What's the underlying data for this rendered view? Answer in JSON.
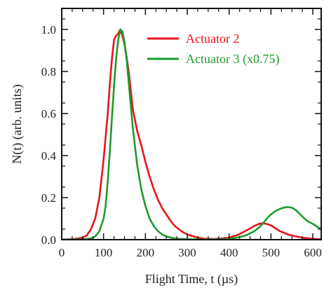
{
  "chart_data": {
    "type": "line",
    "title": "",
    "xlabel": "Flight Time, t (µs)",
    "ylabel": "N(t)  (arb. units)",
    "xlim": [
      0,
      620
    ],
    "ylim": [
      0,
      1.1
    ],
    "xticks": [
      0,
      100,
      200,
      300,
      400,
      500,
      600
    ],
    "xtick_labels": [
      "0",
      "100",
      "200",
      "300",
      "400",
      "500",
      "600"
    ],
    "yticks": [
      0.0,
      0.2,
      0.4,
      0.6,
      0.8,
      1.0
    ],
    "ytick_labels": [
      "0.0",
      "0.2",
      "0.4",
      "0.6",
      "0.8",
      "1.0"
    ],
    "grid": false,
    "legend_position": "top-right",
    "series": [
      {
        "name": "Actuator 2",
        "color": "#e8141b",
        "x": [
          0,
          30,
          50,
          60,
          70,
          80,
          90,
          100,
          110,
          115,
          120,
          125,
          130,
          135,
          140,
          145,
          150,
          155,
          160,
          170,
          180,
          190,
          200,
          210,
          220,
          230,
          240,
          250,
          260,
          270,
          280,
          290,
          300,
          320,
          340,
          360,
          380,
          400,
          420,
          440,
          460,
          470,
          480,
          490,
          500,
          510,
          520,
          540,
          560,
          580,
          600,
          620
        ],
        "y": [
          0,
          0.003,
          0.01,
          0.02,
          0.05,
          0.1,
          0.2,
          0.38,
          0.6,
          0.74,
          0.86,
          0.95,
          0.97,
          0.98,
          1.0,
          0.97,
          0.93,
          0.87,
          0.8,
          0.62,
          0.52,
          0.45,
          0.37,
          0.3,
          0.24,
          0.19,
          0.15,
          0.12,
          0.09,
          0.065,
          0.05,
          0.035,
          0.025,
          0.012,
          0.005,
          0.003,
          0.005,
          0.01,
          0.022,
          0.042,
          0.065,
          0.074,
          0.078,
          0.075,
          0.068,
          0.055,
          0.042,
          0.025,
          0.015,
          0.008,
          0.004,
          0.002
        ]
      },
      {
        "name": "Actuator 3 (x0.75)",
        "color": "#1d9a2b",
        "x": [
          0,
          50,
          70,
          80,
          90,
          100,
          105,
          110,
          115,
          120,
          125,
          130,
          135,
          140,
          145,
          150,
          155,
          160,
          165,
          170,
          180,
          190,
          200,
          210,
          220,
          230,
          240,
          250,
          260,
          270,
          280,
          300,
          320,
          340,
          360,
          380,
          400,
          420,
          440,
          460,
          470,
          480,
          490,
          500,
          510,
          520,
          530,
          540,
          550,
          560,
          570,
          580,
          590,
          600,
          610,
          620
        ],
        "y": [
          0,
          0.002,
          0.006,
          0.015,
          0.04,
          0.1,
          0.16,
          0.28,
          0.42,
          0.58,
          0.73,
          0.86,
          0.95,
          1.0,
          0.99,
          0.94,
          0.86,
          0.75,
          0.64,
          0.53,
          0.36,
          0.24,
          0.16,
          0.1,
          0.065,
          0.04,
          0.025,
          0.016,
          0.01,
          0.006,
          0.004,
          0.002,
          0.001,
          0.001,
          0.001,
          0.002,
          0.004,
          0.01,
          0.02,
          0.04,
          0.055,
          0.075,
          0.1,
          0.12,
          0.135,
          0.145,
          0.152,
          0.155,
          0.152,
          0.14,
          0.12,
          0.1,
          0.085,
          0.075,
          0.062,
          0.05
        ]
      }
    ]
  }
}
